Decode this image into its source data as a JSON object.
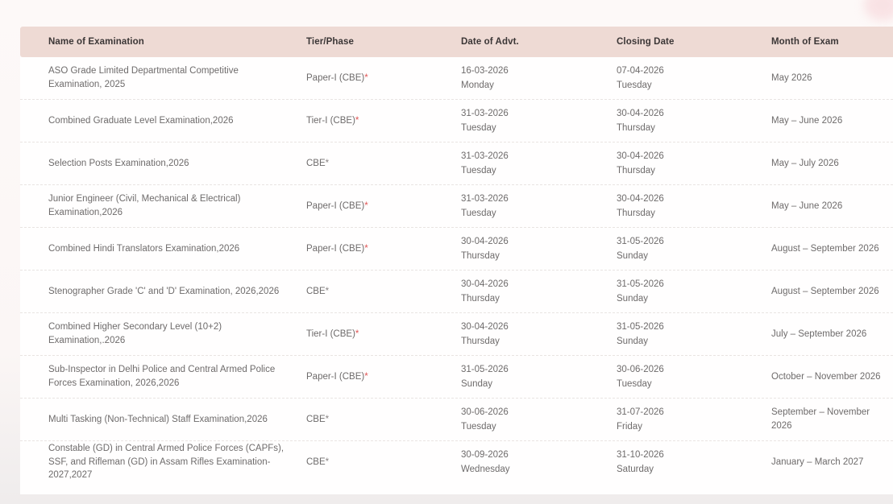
{
  "decoration": {
    "corner_circle_color": "#f8dde0"
  },
  "theme": {
    "header_bg": "#eedad4",
    "body_bg": "#fffefe",
    "page_bg_top": "#fdf9f8",
    "page_bg_bottom": "#efecec",
    "text_color": "#6e6b6b",
    "header_text_color": "#3b3636",
    "asterisk_red": "#e05555"
  },
  "table": {
    "columns": {
      "name": "Name of Examination",
      "tier": "Tier/Phase",
      "advt": "Date of Advt.",
      "closing": "Closing Date",
      "month": "Month of Exam"
    },
    "rows": [
      {
        "name": "ASO Grade Limited Departmental Competitive Examination, 2025",
        "tier": "Paper-I (CBE)",
        "asterisk": "*",
        "asterisk_red": true,
        "advt_date": "16-03-2026",
        "advt_day": "Monday",
        "closing_date": "07-04-2026",
        "closing_day": "Tuesday",
        "month": "May 2026"
      },
      {
        "name": "Combined Graduate Level Examination,2026",
        "tier": "Tier-I (CBE)",
        "asterisk": "*",
        "asterisk_red": true,
        "advt_date": "31-03-2026",
        "advt_day": "Tuesday",
        "closing_date": "30-04-2026",
        "closing_day": "Thursday",
        "month": "May – June 2026"
      },
      {
        "name": "Selection Posts Examination,2026",
        "tier": "CBE",
        "asterisk": "*",
        "asterisk_red": false,
        "advt_date": "31-03-2026",
        "advt_day": "Tuesday",
        "closing_date": "30-04-2026",
        "closing_day": "Thursday",
        "month": "May – July 2026"
      },
      {
        "name": "Junior Engineer (Civil, Mechanical & Electrical) Examination,2026",
        "tier": "Paper-I (CBE)",
        "asterisk": "*",
        "asterisk_red": true,
        "advt_date": "31-03-2026",
        "advt_day": "Tuesday",
        "closing_date": "30-04-2026",
        "closing_day": "Thursday",
        "month": "May – June 2026"
      },
      {
        "name": "Combined Hindi Translators Examination,2026",
        "tier": "Paper-I (CBE)",
        "asterisk": "*",
        "asterisk_red": true,
        "advt_date": "30-04-2026",
        "advt_day": "Thursday",
        "closing_date": "31-05-2026",
        "closing_day": "Sunday",
        "month": "August – September 2026"
      },
      {
        "name": "Stenographer Grade 'C' and 'D' Examination, 2026,2026",
        "tier": "CBE",
        "asterisk": "*",
        "asterisk_red": false,
        "advt_date": "30-04-2026",
        "advt_day": "Thursday",
        "closing_date": "31-05-2026",
        "closing_day": "Sunday",
        "month": "August – September 2026"
      },
      {
        "name": "Combined Higher Secondary Level (10+2) Examination,.2026",
        "tier": "Tier-I (CBE)",
        "asterisk": "*",
        "asterisk_red": true,
        "advt_date": "30-04-2026",
        "advt_day": "Thursday",
        "closing_date": "31-05-2026",
        "closing_day": "Sunday",
        "month": "July – September 2026"
      },
      {
        "name": "Sub-Inspector in Delhi Police and Central Armed Police Forces Examination, 2026,2026",
        "tier": "Paper-I (CBE)",
        "asterisk": "*",
        "asterisk_red": true,
        "advt_date": "31-05-2026",
        "advt_day": "Sunday",
        "closing_date": "30-06-2026",
        "closing_day": "Tuesday",
        "month": "October – November 2026"
      },
      {
        "name": "Multi Tasking (Non-Technical) Staff Examination,2026",
        "tier": "CBE",
        "asterisk": "*",
        "asterisk_red": false,
        "advt_date": "30-06-2026",
        "advt_day": "Tuesday",
        "closing_date": "31-07-2026",
        "closing_day": "Friday",
        "month": "September – November 2026"
      },
      {
        "name": "Constable (GD) in Central Armed Police Forces (CAPFs), SSF, and Rifleman (GD) in Assam Rifles Examination-2027,2027",
        "tier": "CBE",
        "asterisk": "*",
        "asterisk_red": false,
        "advt_date": "30-09-2026",
        "advt_day": "Wednesday",
        "closing_date": "31-10-2026",
        "closing_day": "Saturday",
        "month": "January – March 2027"
      }
    ]
  }
}
